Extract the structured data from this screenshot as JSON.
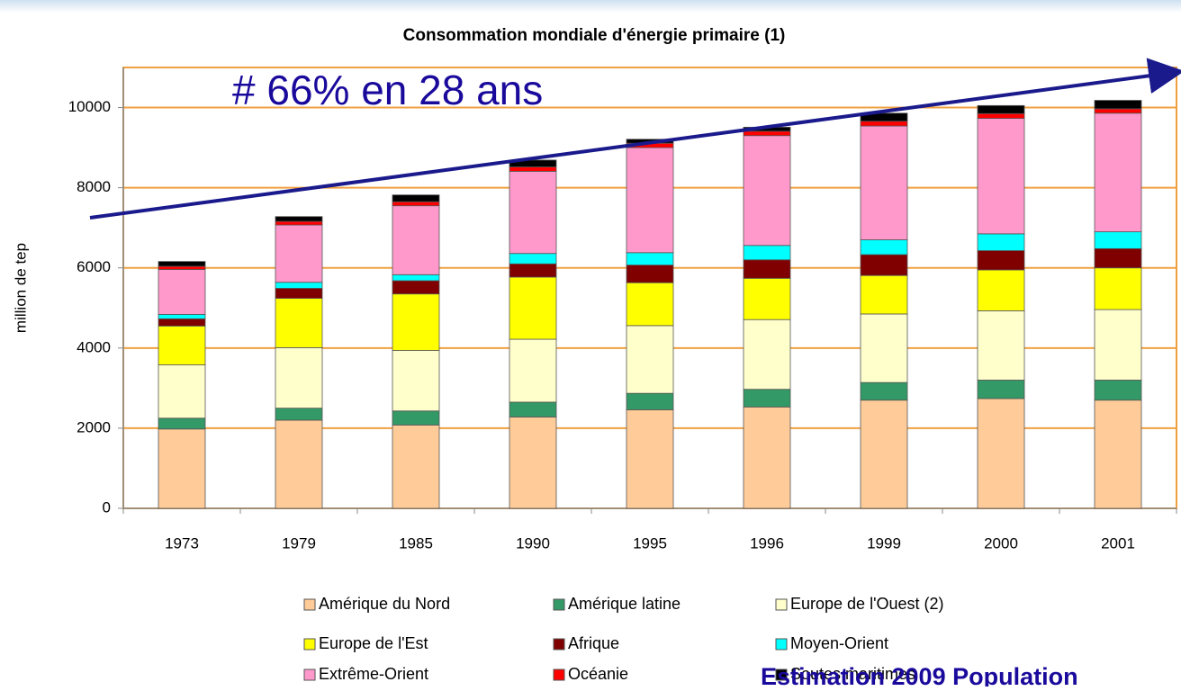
{
  "chart_data": {
    "type": "stacked_bar",
    "title": "Consommation mondiale d'énergie primaire (1)",
    "y_label": "million de tep",
    "annotations": [
      "# 66% en 28 ans",
      "Estimation 2009 Population"
    ],
    "categories": [
      "1973",
      "1979",
      "1985",
      "1990",
      "1995",
      "1996",
      "1999",
      "2000",
      "2001"
    ],
    "series": [
      {
        "name": "Amérique du Nord",
        "color": "#FFCC99",
        "values": [
          1980,
          2200,
          2080,
          2280,
          2460,
          2530,
          2700,
          2740,
          2700
        ]
      },
      {
        "name": "Amérique latine",
        "color": "#339966",
        "values": [
          270,
          300,
          350,
          370,
          410,
          440,
          440,
          460,
          500
        ]
      },
      {
        "name": "Europe de l'Ouest (2)",
        "color": "#FFFFCC",
        "values": [
          1330,
          1510,
          1510,
          1570,
          1690,
          1740,
          1710,
          1730,
          1760
        ]
      },
      {
        "name": "Europe de l'Est",
        "color": "#FFFF00",
        "values": [
          970,
          1230,
          1410,
          1550,
          1070,
          1030,
          960,
          1020,
          1040
        ]
      },
      {
        "name": "Afrique",
        "color": "#800000",
        "values": [
          180,
          250,
          330,
          330,
          440,
          460,
          520,
          480,
          480
        ]
      },
      {
        "name": "Moyen-Orient",
        "color": "#00FFFF",
        "values": [
          110,
          150,
          150,
          260,
          310,
          360,
          370,
          420,
          420
        ]
      },
      {
        "name": "Extrême-Orient",
        "color": "#FF99CC",
        "values": [
          1120,
          1430,
          1720,
          2050,
          2620,
          2740,
          2840,
          2880,
          2960
        ]
      },
      {
        "name": "Océanie",
        "color": "#FF0000",
        "values": [
          80,
          90,
          100,
          110,
          110,
          110,
          120,
          120,
          110
        ]
      },
      {
        "name": "Soutes maritimes",
        "color": "#000000",
        "values": [
          120,
          120,
          170,
          170,
          100,
          100,
          200,
          200,
          210
        ]
      }
    ],
    "ylim": [
      0,
      11000
    ],
    "yticks": [
      0,
      2000,
      4000,
      6000,
      8000,
      10000
    ],
    "grid": true
  }
}
